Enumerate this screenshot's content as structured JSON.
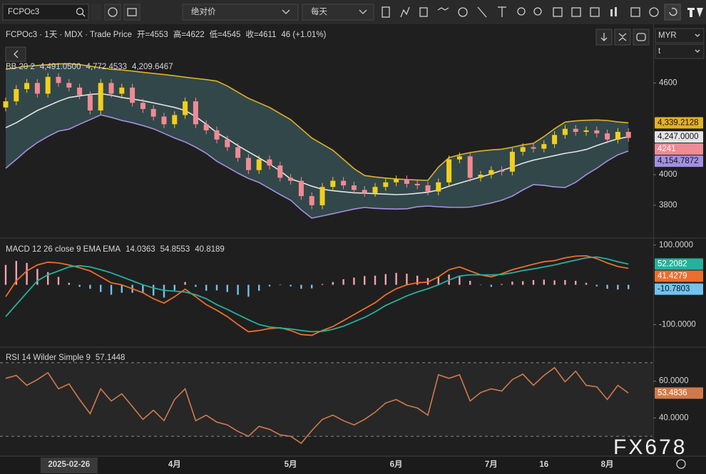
{
  "toolbar": {
    "symbol": "FCPOc3",
    "price_mode": "绝对价",
    "interval": "每天",
    "currency": "MYR",
    "unit": "t"
  },
  "watermark": "FX678",
  "chart_data": [
    {
      "type": "candlestick",
      "title": "FCPOc3 · 1天 · MDX · Trade Price",
      "legend_values": [
        "开=4553",
        "高=4622",
        "低=4545",
        "收=4611",
        "46 (+1.01%)"
      ],
      "categories": [
        null,
        null,
        null,
        null,
        null,
        null,
        "2025-02-26",
        null,
        null,
        null,
        null,
        null,
        null,
        null,
        null,
        null,
        "4月",
        null,
        null,
        null,
        null,
        null,
        null,
        null,
        null,
        null,
        null,
        "5月",
        null,
        null,
        null,
        null,
        null,
        null,
        null,
        null,
        null,
        "6月",
        null,
        null,
        null,
        null,
        null,
        null,
        null,
        null,
        "7月",
        null,
        null,
        null,
        null,
        "16",
        null,
        null,
        null,
        null,
        null,
        "8月",
        null,
        null
      ],
      "open": [
        4440,
        4480,
        4560,
        4600,
        4530,
        4640,
        4600,
        4570,
        4520,
        4420,
        4600,
        4530,
        4570,
        4470,
        4430,
        4380,
        4330,
        4390,
        4480,
        4330,
        4290,
        4230,
        4180,
        4110,
        4030,
        4100,
        4060,
        3980,
        3960,
        3860,
        3800,
        3920,
        3960,
        3930,
        3900,
        3880,
        3920,
        3950,
        3970,
        3940,
        3930,
        3890,
        3950,
        4100,
        4120,
        3980,
        4000,
        4030,
        4020,
        4150,
        4180,
        4170,
        4200,
        4260,
        4300,
        4280,
        4290,
        4270,
        4230,
        4280
      ],
      "high": [
        4505,
        4585,
        4625,
        4625,
        4665,
        4665,
        4625,
        4595,
        4545,
        4625,
        4625,
        4595,
        4595,
        4495,
        4455,
        4405,
        4415,
        4505,
        4505,
        4355,
        4315,
        4255,
        4205,
        4135,
        4125,
        4125,
        4085,
        4005,
        3985,
        3885,
        3945,
        3985,
        3985,
        3955,
        3925,
        3945,
        3975,
        3995,
        3995,
        3965,
        3955,
        3975,
        4125,
        4145,
        4145,
        4025,
        4055,
        4055,
        4175,
        4205,
        4205,
        4225,
        4285,
        4325,
        4325,
        4315,
        4315,
        4295,
        4305,
        4305
      ],
      "low": [
        4415,
        4455,
        4535,
        4505,
        4505,
        4575,
        4545,
        4495,
        4395,
        4395,
        4505,
        4505,
        4445,
        4405,
        4355,
        4305,
        4305,
        4365,
        4305,
        4265,
        4205,
        4155,
        4085,
        4005,
        4005,
        4035,
        3955,
        3935,
        3835,
        3775,
        3775,
        3895,
        3905,
        3875,
        3855,
        3855,
        3895,
        3925,
        3915,
        3905,
        3865,
        3865,
        3925,
        4075,
        3955,
        3955,
        3975,
        3995,
        3995,
        4125,
        4145,
        4145,
        4175,
        4235,
        4255,
        4255,
        4245,
        4205,
        4205,
        4216
      ],
      "close": [
        4480,
        4560,
        4600,
        4530,
        4640,
        4600,
        4570,
        4520,
        4420,
        4600,
        4530,
        4570,
        4470,
        4430,
        4380,
        4330,
        4390,
        4480,
        4330,
        4290,
        4230,
        4180,
        4110,
        4030,
        4100,
        4060,
        3980,
        3960,
        3860,
        3800,
        3920,
        3960,
        3930,
        3900,
        3880,
        3920,
        3950,
        3970,
        3940,
        3930,
        3890,
        3950,
        4100,
        4120,
        3980,
        4000,
        4030,
        4020,
        4150,
        4180,
        4170,
        4200,
        4260,
        4300,
        4280,
        4290,
        4270,
        4230,
        4280,
        4241
      ],
      "up_color": "#f2cf1d",
      "down_color": "#f08a94",
      "ylim": [
        3590,
        4975
      ],
      "yticks": [
        3800,
        4000,
        4600
      ],
      "overlay": {
        "title": "BB 20 2",
        "fill_color": "#3a5558",
        "series": [
          {
            "color": "#e4e4e4",
            "header_label": "4,491.0500",
            "last_label": "4,247.0000",
            "values": [
              4307,
              4340,
              4380,
              4420,
              4450,
              4480,
              4505,
              4515,
              4525,
              4530,
              4520,
              4505,
              4495,
              4484,
              4470,
              4455,
              4440,
              4420,
              4380,
              4330,
              4274,
              4235,
              4190,
              4150,
              4110,
              4070,
              4025,
              3972,
              3950,
              3925,
              3905,
              3895,
              3888,
              3882,
              3879,
              3876,
              3873,
              3870,
              3872,
              3878,
              3885,
              3900,
              3925,
              3945,
              3965,
              3985,
              4005,
              4028,
              4050,
              4075,
              4095,
              4110,
              4125,
              4140,
              4150,
              4165,
              4190,
              4214,
              4235,
              4247
            ]
          },
          {
            "color": "#e2b125",
            "header_label": "4,772.4533",
            "last_label": "4,339.2128",
            "values": [
              4690,
              4700,
              4710,
              4715,
              4720,
              4725,
              4726,
              4720,
              4710,
              4700,
              4690,
              4685,
              4678,
              4670,
              4662,
              4655,
              4647,
              4638,
              4630,
              4622,
              4612,
              4580,
              4540,
              4500,
              4470,
              4440,
              4400,
              4360,
              4300,
              4240,
              4200,
              4160,
              4100,
              4040,
              3995,
              3985,
              3978,
              3972,
              3968,
              3965,
              3963,
              4050,
              4112,
              4130,
              4145,
              4155,
              4162,
              4167,
              4180,
              4195,
              4205,
              4250,
              4300,
              4344,
              4352,
              4356,
              4358,
              4355,
              4345,
              4339.2128
            ]
          },
          {
            "color": "#a48fe0",
            "header_label": "4,209.6467",
            "last_label": "4,154.7872",
            "values": [
              4042,
              4100,
              4160,
              4210,
              4250,
              4285,
              4298,
              4330,
              4360,
              4391,
              4375,
              4355,
              4340,
              4321,
              4300,
              4270,
              4240,
              4214,
              4180,
              4140,
              4088,
              4050,
              4010,
              3975,
              3949,
              3910,
              3870,
              3833,
              3770,
              3716,
              3730,
              3745,
              3760,
              3775,
              3786,
              3780,
              3777,
              3775,
              3777,
              3790,
              3795,
              3790,
              3787,
              3786,
              3788,
              3800,
              3815,
              3833,
              3860,
              3900,
              3935,
              3930,
              3920,
              3916,
              3950,
              4000,
              4042,
              4090,
              4130,
              4154.7872
            ]
          }
        ]
      }
    },
    {
      "type": "macd",
      "title": "MACD 12 26 close 9 EMA EMA",
      "ylim": [
        -155,
        114
      ],
      "yticks": [
        {
          "value": 100,
          "label": "100.0000"
        },
        {
          "value": -100,
          "label": "-100.0000"
        }
      ],
      "series": [
        {
          "type": "histogram",
          "color": "#c8c8c8",
          "up_color": "#f4a3b0",
          "down_color": "#72c3ef",
          "header_label": "14.0363",
          "values": [
            50,
            60,
            55,
            40,
            32,
            20,
            5,
            -5,
            -10,
            -18,
            -25,
            -20,
            -20,
            -20,
            -27,
            -32,
            -14,
            7,
            -5,
            -15,
            -14,
            -18,
            -25,
            -30,
            -15,
            -4,
            1,
            -4,
            -10,
            -9,
            2,
            7,
            14,
            18,
            22,
            23,
            27,
            30,
            28,
            23,
            17,
            20,
            26,
            23,
            10,
            0,
            -5,
            2,
            8,
            9,
            12,
            13,
            11,
            12,
            10,
            5,
            -4,
            -10,
            -12,
            -10.7803
          ]
        },
        {
          "color": "#ec6d2c",
          "header_label": "54.8553",
          "values": [
            -30,
            10,
            35,
            50,
            57,
            55,
            50,
            43,
            35,
            20,
            5,
            0,
            -10,
            -20,
            -35,
            -46,
            -30,
            -11,
            -30,
            -50,
            -64,
            -80,
            -100,
            -118,
            -115,
            -110,
            -108,
            -115,
            -125,
            -127,
            -115,
            -105,
            -90,
            -75,
            -60,
            -45,
            -25,
            -10,
            0,
            5,
            7,
            20,
            38,
            45,
            35,
            25,
            20,
            28,
            38,
            45,
            52,
            58,
            61,
            68,
            72,
            73,
            66,
            55,
            46,
            41.4279
          ]
        },
        {
          "color": "#27b09d",
          "header_label": "40.8189",
          "values": [
            -80,
            -50,
            -20,
            10,
            25,
            35,
            45,
            48,
            45,
            38,
            30,
            20,
            10,
            0,
            -8,
            -14,
            -16,
            -18,
            -25,
            -35,
            -50,
            -62,
            -75,
            -88,
            -100,
            -106,
            -109,
            -111,
            -115,
            -118,
            -117,
            -112,
            -104,
            -93,
            -82,
            -68,
            -52,
            -40,
            -28,
            -18,
            -10,
            0,
            12,
            22,
            25,
            25,
            25,
            26,
            30,
            36,
            40,
            45,
            50,
            56,
            62,
            68,
            70,
            65,
            58,
            52.2082
          ]
        }
      ]
    },
    {
      "type": "line",
      "title": "RSI 14 Wilder Simple 9",
      "ylim": [
        19.2,
        77.7
      ],
      "yticks": [
        {
          "value": 60,
          "label": "60.0000"
        },
        {
          "value": 40,
          "label": "40.0000"
        }
      ],
      "levels": [
        30,
        70
      ],
      "series": [
        {
          "color": "#d07a4c",
          "header_label": "57.1448",
          "values": [
            61.5,
            63.1,
            57.7,
            60.8,
            64.6,
            55.8,
            58.5,
            50,
            42.3,
            55.8,
            49.2,
            53.1,
            46.2,
            39.2,
            44.2,
            38.5,
            50,
            55.8,
            38.5,
            41.5,
            37.7,
            36.2,
            32.7,
            30,
            35.4,
            33.8,
            30.8,
            30,
            26.2,
            33.1,
            39.2,
            41.5,
            38.5,
            36.2,
            39.2,
            43.1,
            48.1,
            50,
            46.9,
            45.4,
            41.5,
            63.5,
            61.5,
            63.5,
            49.2,
            53.8,
            55.8,
            54.6,
            60.8,
            63.8,
            57.7,
            63.1,
            67.3,
            59.6,
            65.4,
            57.7,
            56.9,
            50,
            57.7,
            53.4836
          ]
        }
      ]
    }
  ]
}
